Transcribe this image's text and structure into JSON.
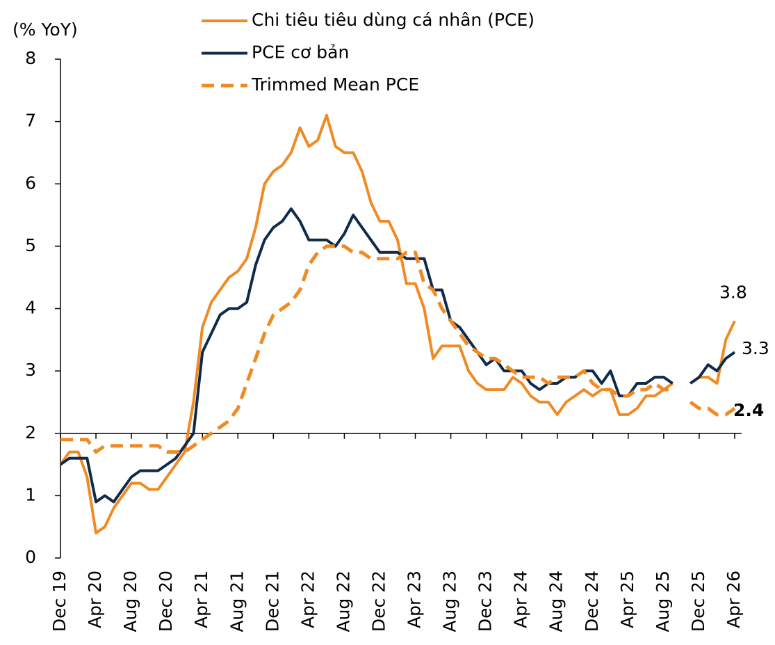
{
  "chart_data": {
    "type": "line",
    "y_axis_label": "(% YoY)",
    "categories": [
      "Dec 19",
      null,
      null,
      null,
      "Apr 20",
      null,
      null,
      null,
      "Aug 20",
      null,
      null,
      null,
      "Dec 20",
      null,
      null,
      null,
      "Apr 21",
      null,
      null,
      null,
      "Aug 21",
      null,
      null,
      null,
      "Dec 21",
      null,
      null,
      null,
      "Apr 22",
      null,
      null,
      null,
      "Aug 22",
      null,
      null,
      null,
      "Dec 22",
      null,
      null,
      null,
      "Apr 23",
      null,
      null,
      null,
      "Aug 23",
      null,
      null,
      null,
      "Dec 23",
      null,
      null,
      null,
      "Apr 24",
      null,
      null,
      null,
      "Aug 24",
      null,
      null,
      null,
      "Dec 24",
      null,
      null,
      null,
      "Apr 25",
      null,
      null,
      null,
      "Aug 25",
      null,
      null,
      null,
      "Dec 25",
      null,
      null,
      null,
      "Apr 26"
    ],
    "series": [
      {
        "name": "Chi tiêu tiêu dùng cá nhân (PCE)",
        "color": "#f08a24",
        "dash": false,
        "values": [
          1.5,
          1.7,
          1.7,
          1.3,
          0.4,
          0.5,
          0.8,
          1.0,
          1.2,
          1.2,
          1.1,
          1.1,
          1.3,
          1.5,
          1.7,
          2.5,
          3.7,
          4.1,
          4.3,
          4.5,
          4.6,
          4.8,
          5.3,
          6.0,
          6.2,
          6.3,
          6.5,
          6.9,
          6.6,
          6.7,
          7.1,
          6.6,
          6.5,
          6.5,
          6.2,
          5.7,
          5.4,
          5.4,
          5.1,
          4.4,
          4.4,
          4.0,
          3.2,
          3.4,
          3.4,
          3.4,
          3.0,
          2.8,
          2.7,
          2.7,
          2.7,
          2.9,
          2.8,
          2.6,
          2.5,
          2.5,
          2.3,
          2.5,
          2.6,
          2.7,
          2.6,
          2.7,
          2.7,
          2.3,
          2.3,
          2.4,
          2.6,
          2.6,
          2.7,
          2.8,
          null,
          2.8,
          2.9,
          2.9,
          2.8,
          3.5,
          3.8
        ]
      },
      {
        "name": "PCE cơ bản",
        "color": "#0f2a4a",
        "dash": false,
        "values": [
          1.5,
          1.6,
          1.6,
          1.6,
          0.9,
          1.0,
          0.9,
          1.1,
          1.3,
          1.4,
          1.4,
          1.4,
          1.5,
          1.6,
          1.8,
          2.0,
          3.3,
          3.6,
          3.9,
          4.0,
          4.0,
          4.1,
          4.7,
          5.1,
          5.3,
          5.4,
          5.6,
          5.4,
          5.1,
          5.1,
          5.1,
          5.0,
          5.2,
          5.5,
          5.3,
          5.1,
          4.9,
          4.9,
          4.9,
          4.8,
          4.8,
          4.8,
          4.3,
          4.3,
          3.8,
          3.7,
          3.5,
          3.3,
          3.1,
          3.2,
          3.0,
          3.0,
          3.0,
          2.8,
          2.7,
          2.8,
          2.8,
          2.9,
          2.9,
          3.0,
          3.0,
          2.8,
          3.0,
          2.6,
          2.6,
          2.8,
          2.8,
          2.9,
          2.9,
          2.8,
          null,
          2.8,
          2.9,
          3.1,
          3.0,
          3.2,
          3.3
        ]
      },
      {
        "name": "Trimmed Mean PCE",
        "color": "#f08a24",
        "dash": true,
        "values": [
          1.9,
          1.9,
          1.9,
          1.9,
          1.7,
          1.8,
          1.8,
          1.8,
          1.8,
          1.8,
          1.8,
          1.8,
          1.7,
          1.7,
          1.7,
          1.8,
          1.9,
          2.0,
          2.1,
          2.2,
          2.4,
          2.8,
          3.2,
          3.6,
          3.9,
          4.0,
          4.1,
          4.3,
          4.7,
          4.9,
          5.0,
          5.0,
          5.0,
          4.9,
          4.9,
          4.8,
          4.8,
          4.8,
          4.8,
          4.9,
          4.9,
          4.4,
          4.3,
          4.0,
          3.8,
          3.6,
          3.4,
          3.3,
          3.2,
          3.2,
          3.1,
          3.0,
          2.9,
          2.9,
          2.9,
          2.8,
          2.9,
          2.9,
          2.9,
          3.0,
          2.8,
          2.7,
          2.7,
          2.6,
          2.6,
          2.7,
          2.7,
          2.8,
          2.7,
          2.7,
          null,
          2.5,
          2.4,
          2.4,
          2.3,
          2.3,
          2.4
        ]
      }
    ],
    "annotations": [
      {
        "text": "3.8",
        "series": 0,
        "bold": false
      },
      {
        "text": "3.3",
        "series": 1,
        "bold": false
      },
      {
        "text": "2.4",
        "series": 2,
        "bold": true
      }
    ],
    "ylim": [
      0,
      8
    ],
    "yticks": [
      0,
      1,
      2,
      3,
      4,
      5,
      6,
      7,
      8
    ],
    "x_axis_at": 2
  }
}
